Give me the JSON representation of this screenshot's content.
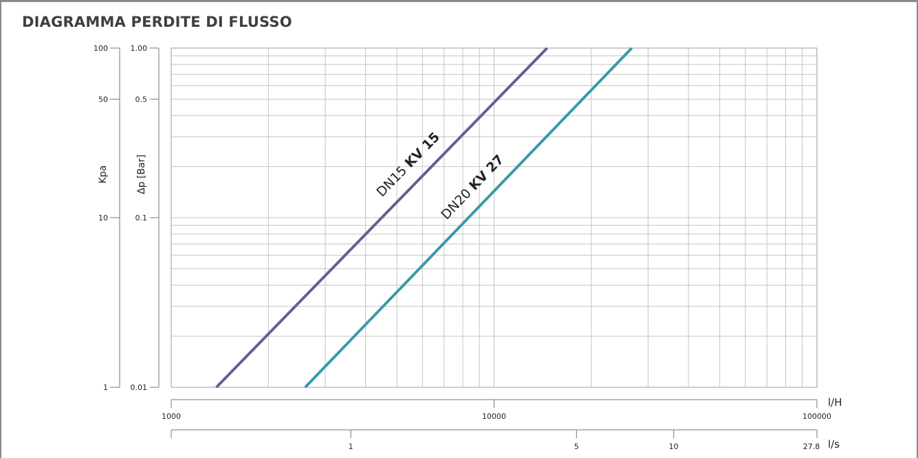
{
  "title": "DIAGRAMMA PERDITE DI FLUSSO",
  "chart_data": {
    "type": "line",
    "title": "DIAGRAMMA PERDITE DI FLUSSO",
    "x_scale": "log",
    "y_scale": "log",
    "xlim": [
      1000,
      100000
    ],
    "ylim": [
      0.01,
      1.0
    ],
    "x_unit_label": "l/H",
    "y_label": "Δp [Bar]",
    "y2_label": "Kpa",
    "x_ticks": [
      {
        "value": 1000,
        "label": "1000"
      },
      {
        "value": 10000,
        "label": "10000"
      },
      {
        "value": 100000,
        "label": "100000"
      }
    ],
    "y_ticks": [
      {
        "value": 0.01,
        "label": "0.01"
      },
      {
        "value": 0.1,
        "label": "0.1"
      },
      {
        "value": 0.5,
        "label": "0.5"
      },
      {
        "value": 1.0,
        "label": "1.00"
      }
    ],
    "y2_ticks": [
      {
        "value": 0.01,
        "label": "1"
      },
      {
        "value": 0.1,
        "label": "10"
      },
      {
        "value": 0.5,
        "label": "50"
      },
      {
        "value": 1.0,
        "label": "100"
      }
    ],
    "secondary_x_unit_label": "l/s",
    "secondary_x_ticks": [
      {
        "value": 3600,
        "label": "1"
      },
      {
        "value": 18000,
        "label": "5"
      },
      {
        "value": 36000,
        "label": "10"
      },
      {
        "value": 100000,
        "label": "27.8"
      }
    ],
    "series": [
      {
        "name_prefix": "DN15",
        "name_kv": "KV 15",
        "color": "#6b5b95",
        "x": [
          1380,
          14600
        ],
        "y": [
          0.01,
          1.0
        ]
      },
      {
        "name_prefix": "DN20",
        "name_kv": "KV 27",
        "color": "#3a9aa6",
        "x": [
          2600,
          26700
        ],
        "y": [
          0.01,
          1.0
        ]
      }
    ],
    "grid": true
  }
}
